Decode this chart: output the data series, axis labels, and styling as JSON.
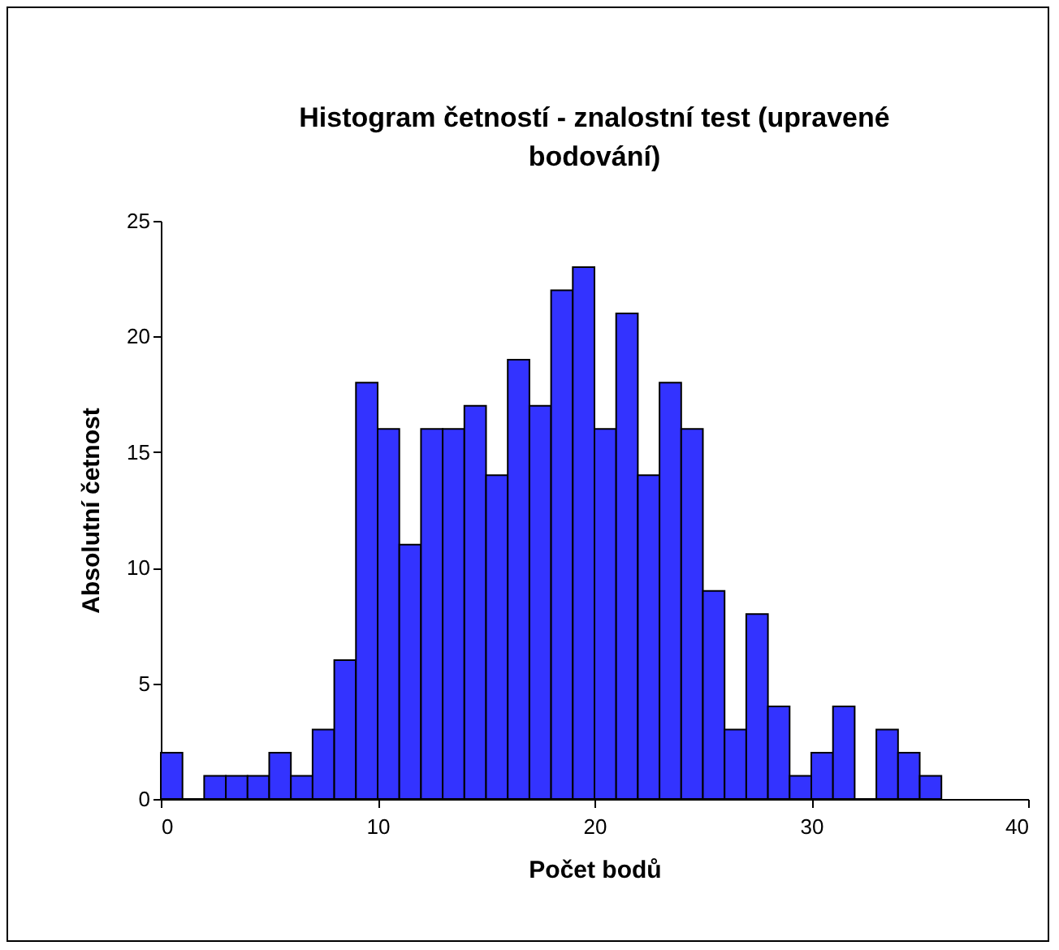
{
  "chart_data": {
    "type": "histogram",
    "title": "Histogram četností - znalostní test (upravené bodování)",
    "xlabel": "Počet bodů",
    "ylabel": "Absolutní četnost",
    "bins": [
      0,
      1,
      2,
      3,
      4,
      5,
      6,
      7,
      8,
      9,
      10,
      11,
      12,
      13,
      14,
      15,
      16,
      17,
      18,
      19,
      20,
      21,
      22,
      23,
      24,
      25,
      26,
      27,
      28,
      29,
      30,
      31,
      32,
      33,
      34,
      35,
      36
    ],
    "values": [
      2,
      0,
      1,
      1,
      1,
      2,
      1,
      3,
      6,
      18,
      16,
      11,
      16,
      16,
      17,
      14,
      19,
      17,
      22,
      23,
      16,
      21,
      14,
      18,
      16,
      9,
      3,
      8,
      4,
      1,
      2,
      4,
      0,
      3,
      2,
      1
    ],
    "color": "#3333ff",
    "xlim": [
      0,
      40
    ],
    "xticks": [
      0,
      10,
      20,
      30,
      40
    ],
    "ylim": [
      0,
      25
    ],
    "yticks": [
      0,
      5,
      10,
      15,
      20,
      25
    ],
    "grid": false
  }
}
